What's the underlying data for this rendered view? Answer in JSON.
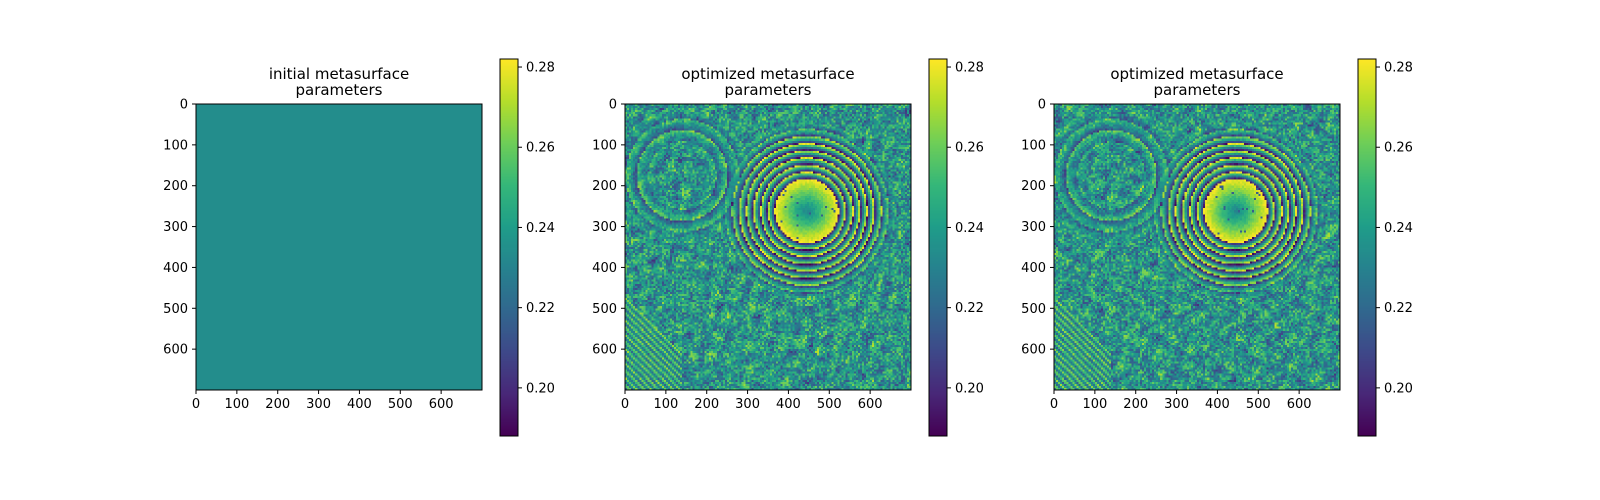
{
  "chart_data": [
    {
      "type": "heatmap",
      "title_lines": [
        "initial metasurface",
        "parameters"
      ],
      "pattern": "uniform",
      "uniform_value": 0.234,
      "extent": [
        0,
        700
      ],
      "xlim": [
        0,
        700
      ],
      "ylim": [
        700,
        0
      ],
      "x_ticks": [
        0,
        100,
        200,
        300,
        400,
        500,
        600
      ],
      "y_ticks": [
        0,
        100,
        200,
        300,
        400,
        500,
        600
      ],
      "colorbar": {
        "min": 0.188,
        "max": 0.282,
        "ticks": [
          "0.20",
          "0.22",
          "0.24",
          "0.26",
          "0.28"
        ],
        "colormap": "viridis"
      }
    },
    {
      "type": "heatmap",
      "title_lines": [
        "optimized metasurface",
        "parameters"
      ],
      "pattern": "concentric rings centred near (445, 260) with a smaller ring system near (145, 170), noisy background",
      "extent": [
        0,
        700
      ],
      "xlim": [
        0,
        700
      ],
      "ylim": [
        700,
        0
      ],
      "x_ticks": [
        0,
        100,
        200,
        300,
        400,
        500,
        600
      ],
      "y_ticks": [
        0,
        100,
        200,
        300,
        400,
        500,
        600
      ],
      "colorbar": {
        "min": 0.188,
        "max": 0.282,
        "ticks": [
          "0.20",
          "0.22",
          "0.24",
          "0.26",
          "0.28"
        ],
        "colormap": "viridis"
      }
    },
    {
      "type": "heatmap",
      "title_lines": [
        "optimized metasurface",
        "parameters"
      ],
      "pattern": "concentric rings centred near (445, 260) with a smaller ring system near (145, 170), noisy background",
      "extent": [
        0,
        700
      ],
      "xlim": [
        0,
        700
      ],
      "ylim": [
        700,
        0
      ],
      "x_ticks": [
        0,
        100,
        200,
        300,
        400,
        500,
        600
      ],
      "y_ticks": [
        0,
        100,
        200,
        300,
        400,
        500,
        600
      ],
      "colorbar": {
        "min": 0.188,
        "max": 0.282,
        "ticks": [
          "0.20",
          "0.22",
          "0.24",
          "0.26",
          "0.28"
        ],
        "colormap": "viridis"
      }
    }
  ]
}
